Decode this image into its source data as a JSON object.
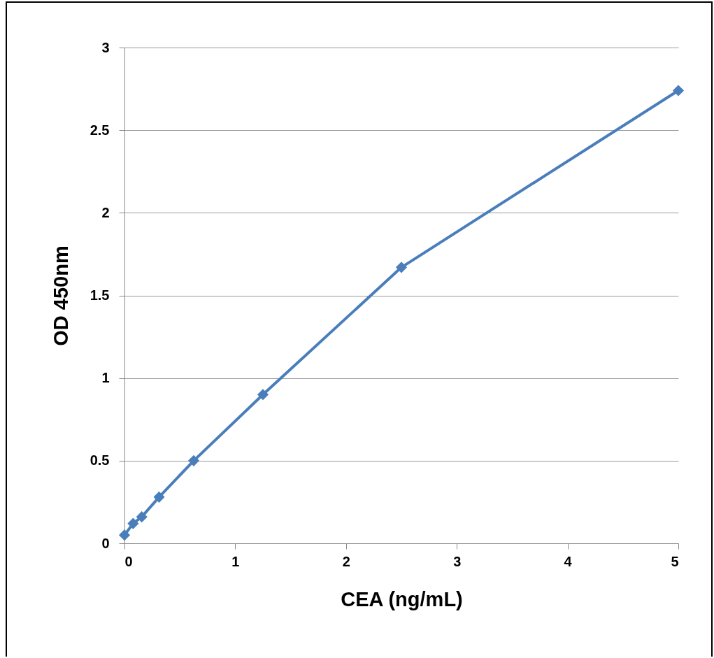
{
  "chart_data": {
    "type": "line",
    "xlabel": "CEA (ng/mL)",
    "ylabel": "OD 450nm",
    "x": [
      0,
      0.078,
      0.156,
      0.3125,
      0.625,
      1.25,
      2.5,
      5
    ],
    "series": [
      {
        "color": "#4a7ebb",
        "values": [
          0.05,
          0.12,
          0.16,
          0.28,
          0.5,
          0.9,
          1.67,
          2.74
        ]
      }
    ],
    "xlim": [
      0,
      5
    ],
    "xticks": [
      0,
      1,
      2,
      3,
      4,
      5
    ],
    "ylim": [
      0,
      3
    ],
    "yticks": [
      0,
      0.5,
      1,
      1.5,
      2,
      2.5,
      3
    ],
    "grid": "y",
    "marker": "diamond",
    "line_style": "solid"
  }
}
